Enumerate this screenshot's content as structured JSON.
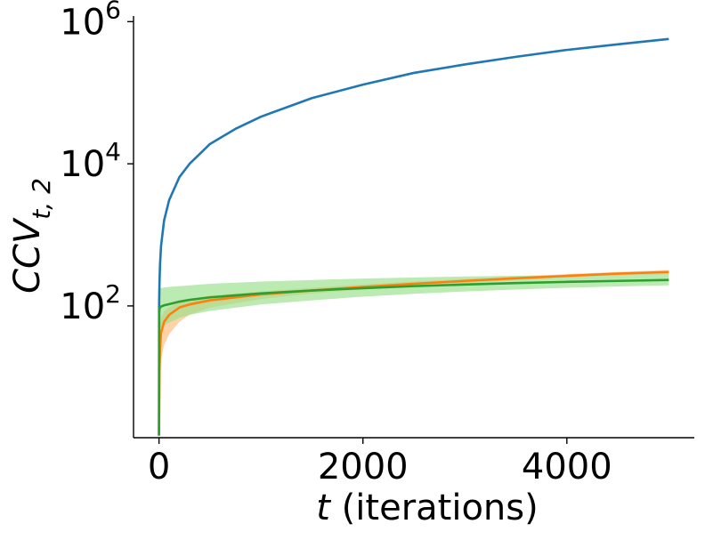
{
  "chart_data": {
    "type": "line",
    "xlabel_var": "t",
    "xlabel_rest": " (iterations)",
    "ylabel_main": "CCV",
    "ylabel_sub": "t, 2",
    "y_scale": "log",
    "xlim": [
      -250,
      5250
    ],
    "ylim": [
      1.4,
      1200000
    ],
    "x_ticks": [
      0,
      2000,
      4000
    ],
    "x_tick_labels": [
      "0",
      "2000",
      "4000"
    ],
    "y_ticks": [
      100,
      10000,
      1000000
    ],
    "y_tick_labels": [
      {
        "base": "10",
        "exp": "2"
      },
      {
        "base": "10",
        "exp": "4"
      },
      {
        "base": "10",
        "exp": "6"
      }
    ],
    "grid": false,
    "series": [
      {
        "color": "#1f77b4",
        "x": [
          0,
          1,
          2,
          5,
          10,
          20,
          50,
          100,
          200,
          300,
          500,
          750,
          1000,
          1500,
          2000,
          2500,
          3000,
          3500,
          4000,
          4500,
          5000
        ],
        "y": [
          1.5,
          100,
          130,
          220,
          380,
          700,
          1600,
          3100,
          6500,
          10000,
          19000,
          31000,
          46000,
          84000,
          130000,
          190000,
          250000,
          320000,
          400000,
          480000,
          570000
        ]
      },
      {
        "color": "#ff7f0e",
        "band_color": "#ffbb78",
        "x": [
          0,
          5,
          10,
          20,
          50,
          100,
          200,
          300,
          500,
          1000,
          1500,
          2000,
          2500,
          3000,
          3500,
          4000,
          4500,
          5000
        ],
        "y": [
          1.5,
          12,
          25,
          42,
          60,
          75,
          95,
          105,
          120,
          145,
          165,
          185,
          205,
          225,
          245,
          265,
          285,
          300
        ],
        "lower": [
          1.5,
          6,
          10,
          18,
          28,
          40,
          60,
          75,
          95,
          125,
          150,
          170,
          190,
          210,
          230,
          250,
          270,
          280
        ],
        "upper": [
          1.5,
          22,
          45,
          70,
          85,
          95,
          115,
          125,
          140,
          160,
          180,
          200,
          220,
          240,
          260,
          280,
          300,
          320
        ]
      },
      {
        "color": "#2ca02c",
        "band_color": "#98df8a",
        "x": [
          0,
          2,
          5,
          10,
          20,
          50,
          100,
          200,
          300,
          500,
          1000,
          1500,
          2000,
          2500,
          3000,
          3500,
          4000,
          4500,
          5000
        ],
        "y": [
          1.5,
          80,
          90,
          95,
          98,
          102,
          106,
          115,
          122,
          132,
          150,
          165,
          178,
          190,
          200,
          210,
          218,
          225,
          232
        ],
        "lower": [
          1.5,
          40,
          45,
          48,
          50,
          53,
          58,
          68,
          75,
          85,
          105,
          120,
          135,
          148,
          160,
          170,
          180,
          188,
          195
        ],
        "upper": [
          1.5,
          160,
          170,
          175,
          178,
          182,
          185,
          190,
          195,
          205,
          220,
          232,
          243,
          252,
          260,
          266,
          272,
          278,
          283
        ]
      }
    ]
  }
}
